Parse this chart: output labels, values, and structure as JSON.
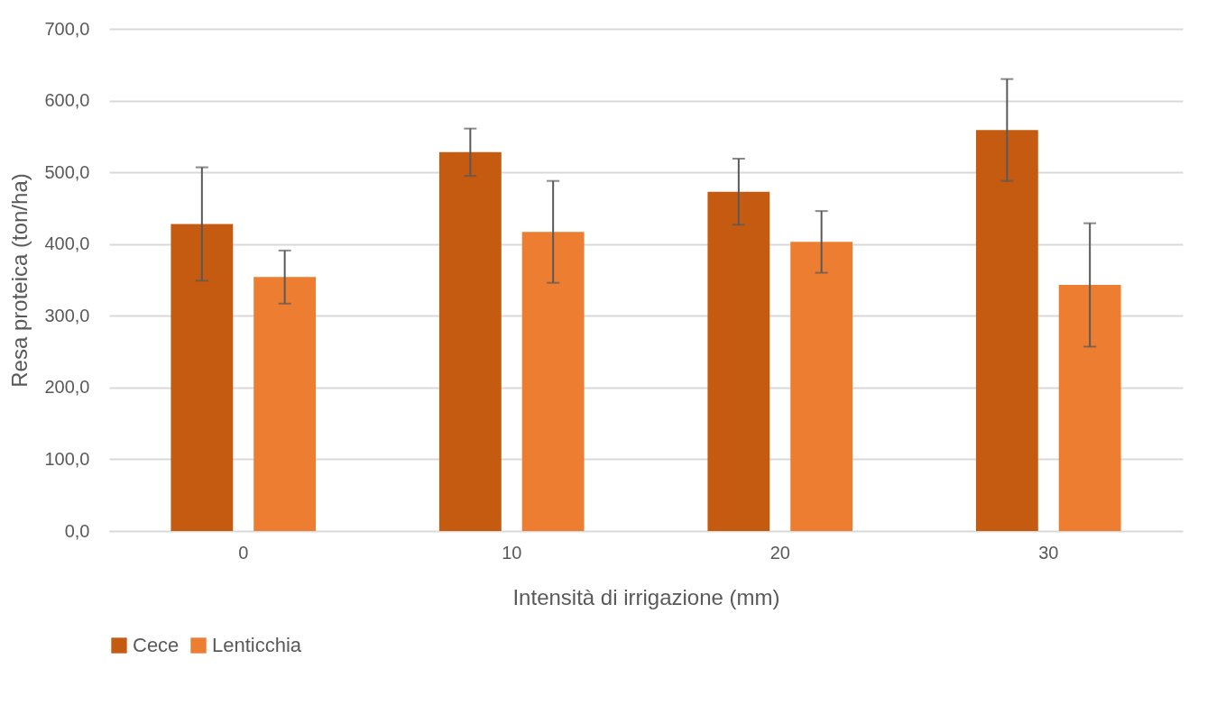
{
  "chart_data": {
    "type": "bar",
    "xlabel": "Intensità di irrigazione (mm)",
    "ylabel": "Resa proteica (ton/ha)",
    "categories": [
      "0",
      "10",
      "20",
      "30"
    ],
    "series": [
      {
        "name": "Cece",
        "color": "#c55a11",
        "values": [
          428,
          528,
          473,
          559
        ],
        "errors": [
          79,
          33,
          46,
          71
        ]
      },
      {
        "name": "Lenticchia",
        "color": "#ed7d31",
        "values": [
          354,
          417,
          403,
          343
        ],
        "errors": [
          37,
          71,
          43,
          86
        ]
      }
    ],
    "ylim": [
      0,
      700
    ],
    "yticks": [
      {
        "value": 0,
        "label": "0,0"
      },
      {
        "value": 100,
        "label": "100,0"
      },
      {
        "value": 200,
        "label": "200,0"
      },
      {
        "value": 300,
        "label": "300,0"
      },
      {
        "value": 400,
        "label": "400,0"
      },
      {
        "value": 500,
        "label": "500,0"
      },
      {
        "value": 600,
        "label": "600,0"
      },
      {
        "value": 700,
        "label": "700,0"
      }
    ],
    "grid": "y",
    "legend": "bottom"
  }
}
